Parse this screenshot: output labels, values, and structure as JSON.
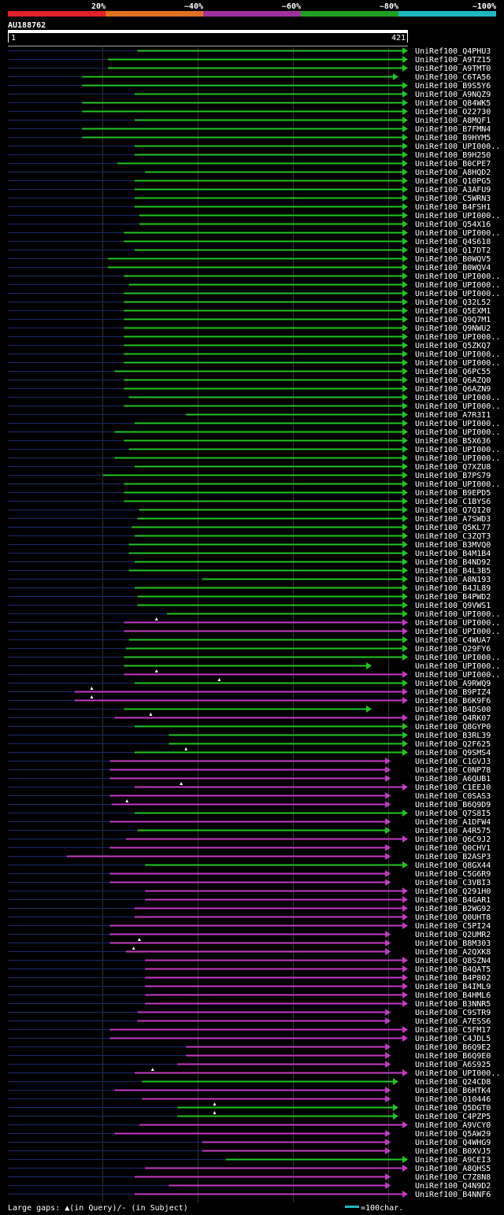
{
  "colors": {
    "background": "#000000",
    "green": "#22c422",
    "magenta": "#c23bc2",
    "track": "#1b2a6b",
    "legend_red": "#e0202a",
    "legend_orange": "#e07020",
    "legend_purple": "#a030a0",
    "legend_green": "#20a020",
    "legend_cyan": "#20b8c0",
    "text": "#ffffff",
    "grid": "#333333"
  },
  "legend": {
    "labels": [
      "20%",
      "~40%",
      "~60%",
      "~80%",
      "~100%"
    ]
  },
  "header": {
    "query_id": "AU188762",
    "start": "1",
    "end": "421"
  },
  "footer": {
    "gaps_text": "Large gaps: ▲(in Query)/- (in Subject)",
    "scale_text": "=100char."
  },
  "chart_data": {
    "type": "alignment",
    "query_length": 421,
    "hits": [
      {
        "name": "UniRef100_Q4PHU3",
        "start": 137,
        "end": 421,
        "color": "green"
      },
      {
        "name": "UniRef100_A9TZ15",
        "start": 106,
        "end": 421,
        "color": "green"
      },
      {
        "name": "UniRef100_A9TMT0",
        "start": 106,
        "end": 421,
        "color": "green"
      },
      {
        "name": "UniRef100_C6TA56",
        "start": 79,
        "end": 411,
        "color": "green"
      },
      {
        "name": "UniRef100_B9S5Y6",
        "start": 79,
        "end": 421,
        "color": "green"
      },
      {
        "name": "UniRef100_A9NQZ9",
        "start": 134,
        "end": 421,
        "color": "green"
      },
      {
        "name": "UniRef100_Q84WK5",
        "start": 79,
        "end": 421,
        "color": "green"
      },
      {
        "name": "UniRef100_O22730",
        "start": 79,
        "end": 421,
        "color": "green"
      },
      {
        "name": "UniRef100_A8MQF1",
        "start": 134,
        "end": 421,
        "color": "green"
      },
      {
        "name": "UniRef100_B7FMN4",
        "start": 79,
        "end": 421,
        "color": "green"
      },
      {
        "name": "UniRef100_B9HYM5",
        "start": 79,
        "end": 421,
        "color": "green"
      },
      {
        "name": "UniRef100_UPI000..",
        "start": 134,
        "end": 421,
        "color": "green"
      },
      {
        "name": "UniRef100_B9H250",
        "start": 134,
        "end": 421,
        "color": "green"
      },
      {
        "name": "UniRef100_B0CPE7",
        "start": 116,
        "end": 421,
        "color": "green"
      },
      {
        "name": "UniRef100_A8HQD2",
        "start": 145,
        "end": 421,
        "color": "green"
      },
      {
        "name": "UniRef100_Q10PG5",
        "start": 134,
        "end": 421,
        "color": "green"
      },
      {
        "name": "UniRef100_A3AFU9",
        "start": 134,
        "end": 421,
        "color": "green"
      },
      {
        "name": "UniRef100_C5WRN3",
        "start": 134,
        "end": 421,
        "color": "green"
      },
      {
        "name": "UniRef100_B4FSH1",
        "start": 134,
        "end": 421,
        "color": "green"
      },
      {
        "name": "UniRef100_UPI000..",
        "start": 139,
        "end": 421,
        "color": "green"
      },
      {
        "name": "UniRef100_Q54X16",
        "start": 139,
        "end": 421,
        "color": "green"
      },
      {
        "name": "UniRef100_UPI000..",
        "start": 123,
        "end": 421,
        "color": "green"
      },
      {
        "name": "UniRef100_Q4S618",
        "start": 123,
        "end": 421,
        "color": "green"
      },
      {
        "name": "UniRef100_Q17DT2",
        "start": 134,
        "end": 421,
        "color": "green"
      },
      {
        "name": "UniRef100_B0WQV5",
        "start": 106,
        "end": 421,
        "color": "green"
      },
      {
        "name": "UniRef100_B0WQV4",
        "start": 106,
        "end": 421,
        "color": "green"
      },
      {
        "name": "UniRef100_UPI000..",
        "start": 123,
        "end": 421,
        "color": "green"
      },
      {
        "name": "UniRef100_UPI000..",
        "start": 128,
        "end": 421,
        "color": "green"
      },
      {
        "name": "UniRef100_UPI000..",
        "start": 123,
        "end": 421,
        "color": "green"
      },
      {
        "name": "UniRef100_Q32L52",
        "start": 123,
        "end": 421,
        "color": "green"
      },
      {
        "name": "UniRef100_Q5EXM1",
        "start": 123,
        "end": 421,
        "color": "green"
      },
      {
        "name": "UniRef100_Q9Q7M1",
        "start": 123,
        "end": 421,
        "color": "green"
      },
      {
        "name": "UniRef100_Q9NWU2",
        "start": 123,
        "end": 421,
        "color": "green"
      },
      {
        "name": "UniRef100_UPI000..",
        "start": 123,
        "end": 421,
        "color": "green"
      },
      {
        "name": "UniRef100_Q5ZKQ7",
        "start": 123,
        "end": 421,
        "color": "green"
      },
      {
        "name": "UniRef100_UPI000..",
        "start": 123,
        "end": 421,
        "color": "green"
      },
      {
        "name": "UniRef100_UPI000..",
        "start": 123,
        "end": 421,
        "color": "green"
      },
      {
        "name": "UniRef100_Q6PC55",
        "start": 113,
        "end": 421,
        "color": "green"
      },
      {
        "name": "UniRef100_Q6AZQ0",
        "start": 123,
        "end": 421,
        "color": "green"
      },
      {
        "name": "UniRef100_Q6AZN9",
        "start": 123,
        "end": 421,
        "color": "green"
      },
      {
        "name": "UniRef100_UPI000..",
        "start": 128,
        "end": 421,
        "color": "green"
      },
      {
        "name": "UniRef100_UPI000..",
        "start": 123,
        "end": 421,
        "color": "green"
      },
      {
        "name": "UniRef100_A7R3I1",
        "start": 188,
        "end": 421,
        "color": "green"
      },
      {
        "name": "UniRef100_UPI000..",
        "start": 134,
        "end": 421,
        "color": "green"
      },
      {
        "name": "UniRef100_UPI000..",
        "start": 113,
        "end": 421,
        "color": "green"
      },
      {
        "name": "UniRef100_B5X636",
        "start": 123,
        "end": 421,
        "color": "green"
      },
      {
        "name": "UniRef100_UPI000..",
        "start": 128,
        "end": 421,
        "color": "green"
      },
      {
        "name": "UniRef100_UPI000..",
        "start": 113,
        "end": 421,
        "color": "green"
      },
      {
        "name": "UniRef100_Q7XZU8",
        "start": 134,
        "end": 421,
        "color": "green"
      },
      {
        "name": "UniRef100_B7PS79",
        "start": 101,
        "end": 421,
        "color": "green"
      },
      {
        "name": "UniRef100_UPI000..",
        "start": 123,
        "end": 421,
        "color": "green"
      },
      {
        "name": "UniRef100_B9EPD5",
        "start": 123,
        "end": 421,
        "color": "green"
      },
      {
        "name": "UniRef100_C1BYS6",
        "start": 123,
        "end": 421,
        "color": "green"
      },
      {
        "name": "UniRef100_Q7QI20",
        "start": 139,
        "end": 421,
        "color": "green"
      },
      {
        "name": "UniRef100_A7SWD3",
        "start": 137,
        "end": 421,
        "color": "green"
      },
      {
        "name": "UniRef100_Q5KL77",
        "start": 131,
        "end": 421,
        "color": "green"
      },
      {
        "name": "UniRef100_C3ZQT3",
        "start": 134,
        "end": 421,
        "color": "green"
      },
      {
        "name": "UniRef100_B3MVQ0",
        "start": 128,
        "end": 421,
        "color": "green"
      },
      {
        "name": "UniRef100_B4M1B4",
        "start": 128,
        "end": 421,
        "color": "green"
      },
      {
        "name": "UniRef100_B4ND92",
        "start": 134,
        "end": 421,
        "color": "green"
      },
      {
        "name": "UniRef100_B4L3B5",
        "start": 128,
        "end": 421,
        "color": "green"
      },
      {
        "name": "UniRef100_A8N193",
        "start": 205,
        "end": 421,
        "color": "green"
      },
      {
        "name": "UniRef100_B4JL89",
        "start": 134,
        "end": 421,
        "color": "green"
      },
      {
        "name": "UniRef100_B4PWD2",
        "start": 137,
        "end": 421,
        "color": "green"
      },
      {
        "name": "UniRef100_Q9VWS1",
        "start": 137,
        "end": 421,
        "color": "green"
      },
      {
        "name": "UniRef100_UPI000..",
        "start": 168,
        "end": 421,
        "color": "green"
      },
      {
        "name": "UniRef100_UPI000..",
        "start": 123,
        "end": 421,
        "color": "magenta",
        "gaps": [
          157
        ]
      },
      {
        "name": "UniRef100_UPI000..",
        "start": 123,
        "end": 421,
        "color": "magenta"
      },
      {
        "name": "UniRef100_C4WUA7",
        "start": 128,
        "end": 421,
        "color": "green"
      },
      {
        "name": "UniRef100_Q29FY6",
        "start": 125,
        "end": 421,
        "color": "green"
      },
      {
        "name": "UniRef100_UPI000..",
        "start": 123,
        "end": 421,
        "color": "green"
      },
      {
        "name": "UniRef100_UPI000..",
        "start": 123,
        "end": 383,
        "color": "green"
      },
      {
        "name": "UniRef100_UPI000..",
        "start": 123,
        "end": 421,
        "color": "magenta",
        "gaps": [
          157
        ]
      },
      {
        "name": "UniRef100_A9RWQ9",
        "start": 134,
        "end": 421,
        "color": "green",
        "gaps": [
          223
        ]
      },
      {
        "name": "UniRef100_B9PIZ4",
        "start": 71,
        "end": 421,
        "color": "magenta",
        "gaps": [
          89
        ]
      },
      {
        "name": "UniRef100_B6K9F6",
        "start": 71,
        "end": 421,
        "color": "magenta",
        "gaps": [
          89
        ]
      },
      {
        "name": "UniRef100_B4DS00",
        "start": 123,
        "end": 383,
        "color": "green"
      },
      {
        "name": "UniRef100_Q4RK07",
        "start": 113,
        "end": 421,
        "color": "magenta",
        "gaps": [
          151
        ]
      },
      {
        "name": "UniRef100_Q8GYP0",
        "start": 134,
        "end": 421,
        "color": "green"
      },
      {
        "name": "UniRef100_B3RL39",
        "start": 170,
        "end": 421,
        "color": "green"
      },
      {
        "name": "UniRef100_Q2F625",
        "start": 170,
        "end": 421,
        "color": "green"
      },
      {
        "name": "UniRef100_Q9SMS4",
        "start": 134,
        "end": 421,
        "color": "green",
        "gaps": [
          188
        ]
      },
      {
        "name": "UniRef100_C1GVJ3",
        "start": 108,
        "end": 403,
        "color": "magenta"
      },
      {
        "name": "UniRef100_C0NP78",
        "start": 108,
        "end": 403,
        "color": "magenta"
      },
      {
        "name": "UniRef100_A6QUB1",
        "start": 108,
        "end": 403,
        "color": "magenta"
      },
      {
        "name": "UniRef100_C1EEJ0",
        "start": 134,
        "end": 421,
        "color": "magenta",
        "gaps": [
          183
        ]
      },
      {
        "name": "UniRef100_C0SAS3",
        "start": 108,
        "end": 403,
        "color": "magenta"
      },
      {
        "name": "UniRef100_B6Q9D9",
        "start": 110,
        "end": 403,
        "color": "magenta",
        "gaps": [
          126
        ]
      },
      {
        "name": "UniRef100_Q7S8I5",
        "start": 134,
        "end": 421,
        "color": "green"
      },
      {
        "name": "UniRef100_A1DFW4",
        "start": 108,
        "end": 403,
        "color": "magenta"
      },
      {
        "name": "UniRef100_A4R575",
        "start": 137,
        "end": 403,
        "color": "green"
      },
      {
        "name": "UniRef100_Q6C9J2",
        "start": 125,
        "end": 421,
        "color": "magenta"
      },
      {
        "name": "UniRef100_Q0CHV1",
        "start": 108,
        "end": 403,
        "color": "magenta"
      },
      {
        "name": "UniRef100_B2ASP3",
        "start": 63,
        "end": 403,
        "color": "magenta"
      },
      {
        "name": "UniRef100_Q8GX44",
        "start": 145,
        "end": 421,
        "color": "green"
      },
      {
        "name": "UniRef100_C5G6R9",
        "start": 108,
        "end": 403,
        "color": "magenta"
      },
      {
        "name": "UniRef100_C3VBI3",
        "start": 108,
        "end": 403,
        "color": "magenta"
      },
      {
        "name": "UniRef100_Q291H0",
        "start": 145,
        "end": 421,
        "color": "magenta"
      },
      {
        "name": "UniRef100_B4GAR1",
        "start": 145,
        "end": 421,
        "color": "magenta"
      },
      {
        "name": "UniRef100_B2WG92",
        "start": 134,
        "end": 421,
        "color": "magenta"
      },
      {
        "name": "UniRef100_Q0UHT8",
        "start": 134,
        "end": 421,
        "color": "magenta"
      },
      {
        "name": "UniRef100_C5PI24",
        "start": 108,
        "end": 421,
        "color": "magenta"
      },
      {
        "name": "UniRef100_Q2UMR2",
        "start": 108,
        "end": 403,
        "color": "magenta"
      },
      {
        "name": "UniRef100_B8M303",
        "start": 108,
        "end": 403,
        "color": "magenta",
        "gaps": [
          139
        ]
      },
      {
        "name": "UniRef100_A2QXK8",
        "start": 125,
        "end": 403,
        "color": "magenta",
        "gaps": [
          133
        ]
      },
      {
        "name": "UniRef100_Q8SZN4",
        "start": 145,
        "end": 421,
        "color": "magenta"
      },
      {
        "name": "UniRef100_B4QAT5",
        "start": 145,
        "end": 421,
        "color": "magenta"
      },
      {
        "name": "UniRef100_B4P802",
        "start": 145,
        "end": 421,
        "color": "magenta"
      },
      {
        "name": "UniRef100_B4IML9",
        "start": 145,
        "end": 421,
        "color": "magenta"
      },
      {
        "name": "UniRef100_B4HML6",
        "start": 145,
        "end": 421,
        "color": "magenta"
      },
      {
        "name": "UniRef100_B3NNR5",
        "start": 145,
        "end": 421,
        "color": "magenta"
      },
      {
        "name": "UniRef100_C9STR9",
        "start": 137,
        "end": 403,
        "color": "magenta"
      },
      {
        "name": "UniRef100_A7ESS6",
        "start": 137,
        "end": 403,
        "color": "magenta"
      },
      {
        "name": "UniRef100_C5FM17",
        "start": 108,
        "end": 421,
        "color": "magenta"
      },
      {
        "name": "UniRef100_C4JDL5",
        "start": 108,
        "end": 421,
        "color": "magenta"
      },
      {
        "name": "UniRef100_B6Q9E2",
        "start": 188,
        "end": 403,
        "color": "magenta"
      },
      {
        "name": "UniRef100_B6Q9E0",
        "start": 188,
        "end": 403,
        "color": "magenta"
      },
      {
        "name": "UniRef100_A6S925",
        "start": 179,
        "end": 403,
        "color": "magenta"
      },
      {
        "name": "UniRef100_UPI000..",
        "start": 134,
        "end": 421,
        "color": "magenta",
        "gaps": [
          153
        ]
      },
      {
        "name": "UniRef100_Q24CD8",
        "start": 142,
        "end": 411,
        "color": "green"
      },
      {
        "name": "UniRef100_B6HTK4",
        "start": 113,
        "end": 403,
        "color": "magenta"
      },
      {
        "name": "UniRef100_Q10446",
        "start": 142,
        "end": 403,
        "color": "magenta"
      },
      {
        "name": "UniRef100_Q5DGT0",
        "start": 179,
        "end": 411,
        "color": "green",
        "gaps": [
          218
        ]
      },
      {
        "name": "UniRef100_C4PZP5",
        "start": 179,
        "end": 411,
        "color": "green",
        "gaps": [
          218
        ]
      },
      {
        "name": "UniRef100_A9VCY0",
        "start": 139,
        "end": 421,
        "color": "magenta"
      },
      {
        "name": "UniRef100_Q5AW29",
        "start": 113,
        "end": 403,
        "color": "magenta"
      },
      {
        "name": "UniRef100_Q4WHG9",
        "start": 205,
        "end": 403,
        "color": "magenta"
      },
      {
        "name": "UniRef100_B0XVJ5",
        "start": 205,
        "end": 403,
        "color": "magenta"
      },
      {
        "name": "UniRef100_A9CEI3",
        "start": 230,
        "end": 421,
        "color": "green"
      },
      {
        "name": "UniRef100_A8QHS5",
        "start": 145,
        "end": 421,
        "color": "magenta"
      },
      {
        "name": "UniRef100_C7Z8N8",
        "start": 134,
        "end": 403,
        "color": "magenta"
      },
      {
        "name": "UniRef100_Q4N9D2",
        "start": 170,
        "end": 403,
        "color": "magenta"
      },
      {
        "name": "UniRef100_B4NNF6",
        "start": 134,
        "end": 421,
        "color": "magenta"
      }
    ]
  }
}
